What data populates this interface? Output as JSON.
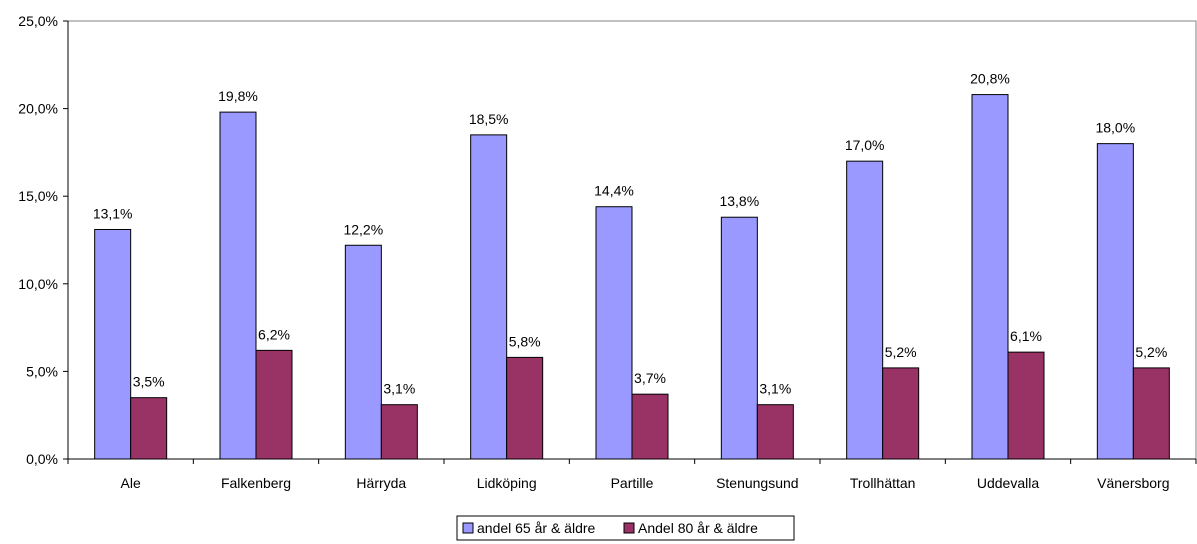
{
  "chart_data": {
    "type": "bar",
    "categories": [
      "Ale",
      "Falkenberg",
      "Härryda",
      "Lidköping",
      "Partille",
      "Stenungsund",
      "Trollhättan",
      "Uddevalla",
      "Vänersborg"
    ],
    "series": [
      {
        "name": "andel 65 år & äldre",
        "color": "#9999ff",
        "values": [
          13.1,
          19.8,
          12.2,
          18.5,
          14.4,
          13.8,
          17.0,
          20.8,
          18.0
        ],
        "labels": [
          "13,1%",
          "19,8%",
          "12,2%",
          "18,5%",
          "14,4%",
          "13,8%",
          "17,0%",
          "20,8%",
          "18,0%"
        ]
      },
      {
        "name": "Andel 80 år & äldre",
        "color": "#993366",
        "values": [
          3.5,
          6.2,
          3.1,
          5.8,
          3.7,
          3.1,
          5.2,
          6.1,
          5.2
        ],
        "labels": [
          "3,5%",
          "6,2%",
          "3,1%",
          "5,8%",
          "3,7%",
          "3,1%",
          "5,2%",
          "6,1%",
          "5,2%"
        ]
      }
    ],
    "ylim": [
      0,
      25
    ],
    "yticks": [
      0,
      5,
      10,
      15,
      20,
      25
    ],
    "ytick_labels": [
      "0,0%",
      "5,0%",
      "10,0%",
      "15,0%",
      "20,0%",
      "25,0%"
    ],
    "grid": false,
    "legend_position": "bottom"
  }
}
